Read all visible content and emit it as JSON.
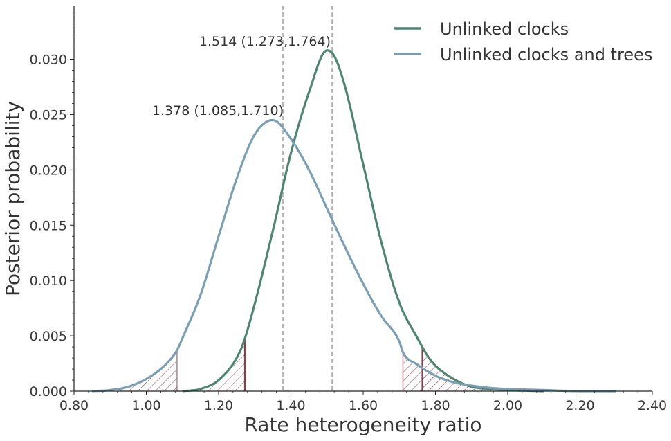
{
  "chart_data": {
    "type": "line",
    "title": "",
    "xlabel": "Rate heterogeneity ratio",
    "ylabel": "Posterior probability",
    "xlim": [
      0.8,
      2.4
    ],
    "ylim": [
      0.0,
      0.035
    ],
    "x_ticks": [
      "0.80",
      "1.00",
      "1.20",
      "1.40",
      "1.60",
      "1.80",
      "2.00",
      "2.20",
      "2.40"
    ],
    "y_ticks": [
      "0.000",
      "0.005",
      "0.010",
      "0.015",
      "0.020",
      "0.025",
      "0.030"
    ],
    "grid": false,
    "legend_position": "top-right",
    "colors": {
      "series_0": "#4e8571",
      "series_1": "#7a9fb4",
      "shade": "#7a2a3e",
      "ref_line": "#888888"
    },
    "series": [
      {
        "name": "Unlinked clocks",
        "x": [
          1.1,
          1.15,
          1.2,
          1.25,
          1.27,
          1.3,
          1.35,
          1.4,
          1.45,
          1.5,
          1.52,
          1.55,
          1.6,
          1.65,
          1.7,
          1.75,
          1.78,
          1.8,
          1.85,
          1.9,
          1.95,
          2.0,
          2.1
        ],
        "y": [
          0.0,
          0.0002,
          0.001,
          0.003,
          0.0045,
          0.0079,
          0.0145,
          0.0215,
          0.027,
          0.0308,
          0.0303,
          0.0275,
          0.0205,
          0.0135,
          0.008,
          0.0048,
          0.0031,
          0.0023,
          0.0011,
          0.0004,
          0.0002,
          0.0001,
          0.0
        ],
        "median_label": "1.514 (1.273,1.764)",
        "hpd_low": 1.273,
        "hpd_high": 1.764
      },
      {
        "name": "Unlinked clocks and trees",
        "x": [
          0.85,
          0.9,
          0.95,
          1.0,
          1.05,
          1.085,
          1.1,
          1.15,
          1.2,
          1.25,
          1.3,
          1.35,
          1.4,
          1.45,
          1.5,
          1.55,
          1.6,
          1.65,
          1.7,
          1.71,
          1.75,
          1.8,
          1.85,
          1.9,
          1.95,
          2.0,
          2.1,
          2.2,
          2.3
        ],
        "y": [
          0.0,
          0.0001,
          0.0004,
          0.0011,
          0.0023,
          0.0037,
          0.0048,
          0.0087,
          0.014,
          0.0192,
          0.0232,
          0.0245,
          0.0228,
          0.02,
          0.0165,
          0.013,
          0.0097,
          0.0068,
          0.0045,
          0.0035,
          0.0024,
          0.0014,
          0.0008,
          0.0005,
          0.0003,
          0.0002,
          0.0001,
          0.0,
          0.0
        ],
        "median_label": "1.378 (1.085,1.710)",
        "hpd_low": 1.085,
        "hpd_high": 1.71
      }
    ],
    "reference_lines_x": [
      1.378,
      1.514
    ]
  }
}
